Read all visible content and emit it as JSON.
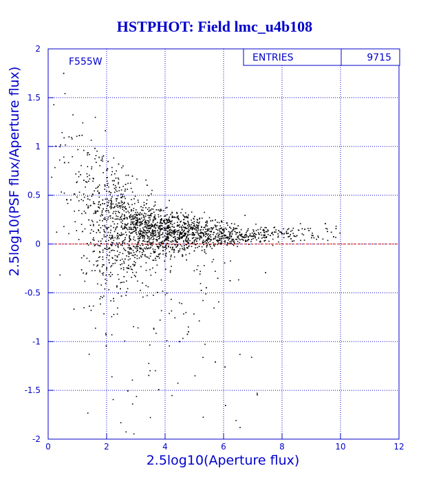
{
  "chart_data": {
    "type": "scatter",
    "title": "HSTPHOT: Field lmc_u4b108",
    "xlabel": "2.5log10(Aperture flux)",
    "ylabel": "2.5log10(PSF flux/Aperture flux)",
    "xlim": [
      0,
      12
    ],
    "ylim": [
      -2,
      2
    ],
    "xticks": [
      "0",
      "2",
      "4",
      "6",
      "8",
      "10",
      "12"
    ],
    "yticks": [
      "2",
      "1.5",
      "1",
      "0.5",
      "0",
      "-0.5",
      "-1",
      "-1.5",
      "-2"
    ],
    "grid": true,
    "reference_line_y": 0,
    "annotation": "F555W",
    "stats": {
      "label": "ENTRIES",
      "value": "9715"
    },
    "density_profile": [
      {
        "x": 0.3,
        "center": 1.1,
        "spread": 0.45,
        "weight": 0.1
      },
      {
        "x": 0.8,
        "center": 0.8,
        "spread": 0.45,
        "weight": 0.25
      },
      {
        "x": 1.2,
        "center": 0.5,
        "spread": 0.45,
        "weight": 0.6
      },
      {
        "x": 1.6,
        "center": 0.3,
        "spread": 0.45,
        "weight": 1.2
      },
      {
        "x": 2.0,
        "center": 0.22,
        "spread": 0.35,
        "weight": 1.8
      },
      {
        "x": 2.5,
        "center": 0.18,
        "spread": 0.25,
        "weight": 2.2
      },
      {
        "x": 3.0,
        "center": 0.15,
        "spread": 0.18,
        "weight": 2.3
      },
      {
        "x": 3.5,
        "center": 0.13,
        "spread": 0.14,
        "weight": 2.3
      },
      {
        "x": 4.0,
        "center": 0.12,
        "spread": 0.12,
        "weight": 2.1
      },
      {
        "x": 4.5,
        "center": 0.11,
        "spread": 0.1,
        "weight": 1.8
      },
      {
        "x": 5.0,
        "center": 0.11,
        "spread": 0.09,
        "weight": 1.5
      },
      {
        "x": 5.5,
        "center": 0.1,
        "spread": 0.08,
        "weight": 1.2
      },
      {
        "x": 6.0,
        "center": 0.1,
        "spread": 0.07,
        "weight": 0.9
      },
      {
        "x": 6.5,
        "center": 0.1,
        "spread": 0.06,
        "weight": 0.6
      },
      {
        "x": 7.0,
        "center": 0.1,
        "spread": 0.05,
        "weight": 0.4
      },
      {
        "x": 8.0,
        "center": 0.11,
        "spread": 0.05,
        "weight": 0.2
      },
      {
        "x": 9.0,
        "center": 0.12,
        "spread": 0.05,
        "weight": 0.1
      },
      {
        "x": 10.0,
        "center": 0.12,
        "spread": 0.05,
        "weight": 0.03
      }
    ],
    "colors": {
      "text": "#0000cc",
      "grid": "#0000cc",
      "points": "#000000",
      "reference": "#cc0000"
    }
  }
}
